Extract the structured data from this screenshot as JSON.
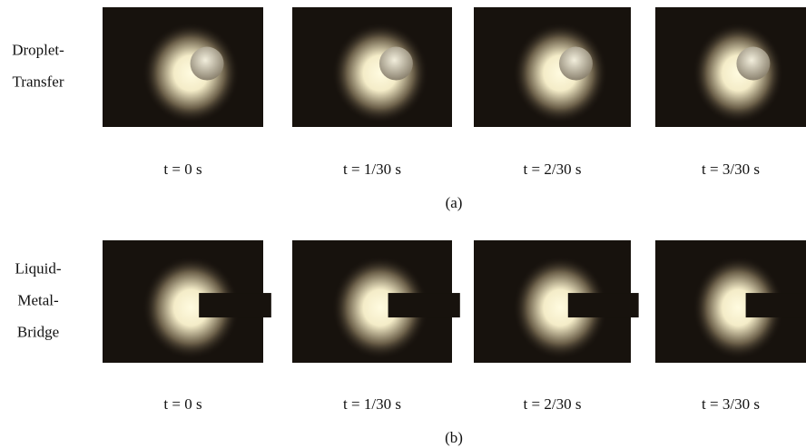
{
  "figure": {
    "rows": [
      {
        "label_lines": [
          "Droplet-",
          "Transfer"
        ],
        "times": [
          "t = 0 s",
          "t = 1/30 s",
          "t = 2/30 s",
          "t = 3/30 s"
        ],
        "caption": "(a)"
      },
      {
        "label_lines": [
          "Liquid-",
          "Metal-",
          "Bridge"
        ],
        "times": [
          "t = 0 s",
          "t = 1/30 s",
          "t = 2/30 s",
          "t = 3/30 s"
        ],
        "caption": "(b)"
      }
    ]
  }
}
